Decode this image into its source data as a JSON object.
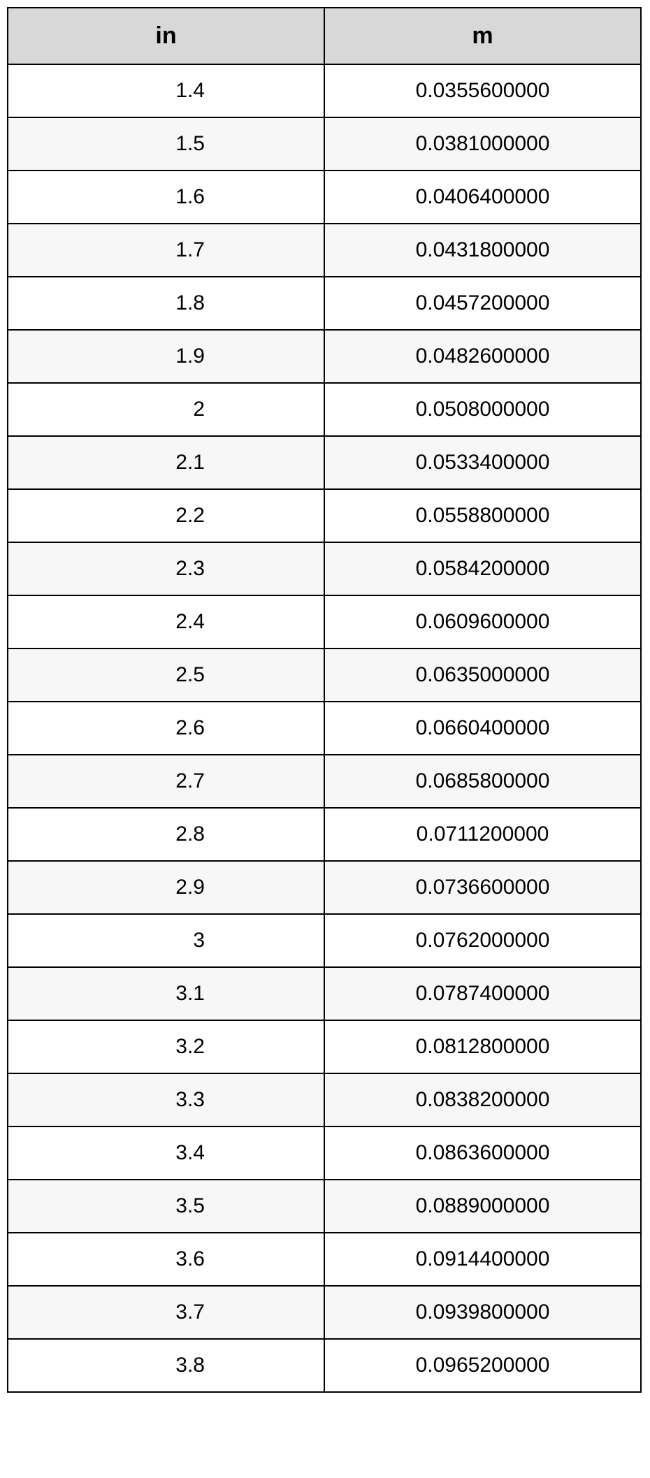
{
  "table": {
    "header_bg": "#d8d8d8",
    "row_alt_bg": "#f7f7f7",
    "row_bg": "#ffffff",
    "border_color": "#000000",
    "header_fontsize": 34,
    "cell_fontsize": 30,
    "columns": [
      "in",
      "m"
    ],
    "rows": [
      [
        "1.4",
        "0.0355600000"
      ],
      [
        "1.5",
        "0.0381000000"
      ],
      [
        "1.6",
        "0.0406400000"
      ],
      [
        "1.7",
        "0.0431800000"
      ],
      [
        "1.8",
        "0.0457200000"
      ],
      [
        "1.9",
        "0.0482600000"
      ],
      [
        "2",
        "0.0508000000"
      ],
      [
        "2.1",
        "0.0533400000"
      ],
      [
        "2.2",
        "0.0558800000"
      ],
      [
        "2.3",
        "0.0584200000"
      ],
      [
        "2.4",
        "0.0609600000"
      ],
      [
        "2.5",
        "0.0635000000"
      ],
      [
        "2.6",
        "0.0660400000"
      ],
      [
        "2.7",
        "0.0685800000"
      ],
      [
        "2.8",
        "0.0711200000"
      ],
      [
        "2.9",
        "0.0736600000"
      ],
      [
        "3",
        "0.0762000000"
      ],
      [
        "3.1",
        "0.0787400000"
      ],
      [
        "3.2",
        "0.0812800000"
      ],
      [
        "3.3",
        "0.0838200000"
      ],
      [
        "3.4",
        "0.0863600000"
      ],
      [
        "3.5",
        "0.0889000000"
      ],
      [
        "3.6",
        "0.0914400000"
      ],
      [
        "3.7",
        "0.0939800000"
      ],
      [
        "3.8",
        "0.0965200000"
      ]
    ]
  }
}
